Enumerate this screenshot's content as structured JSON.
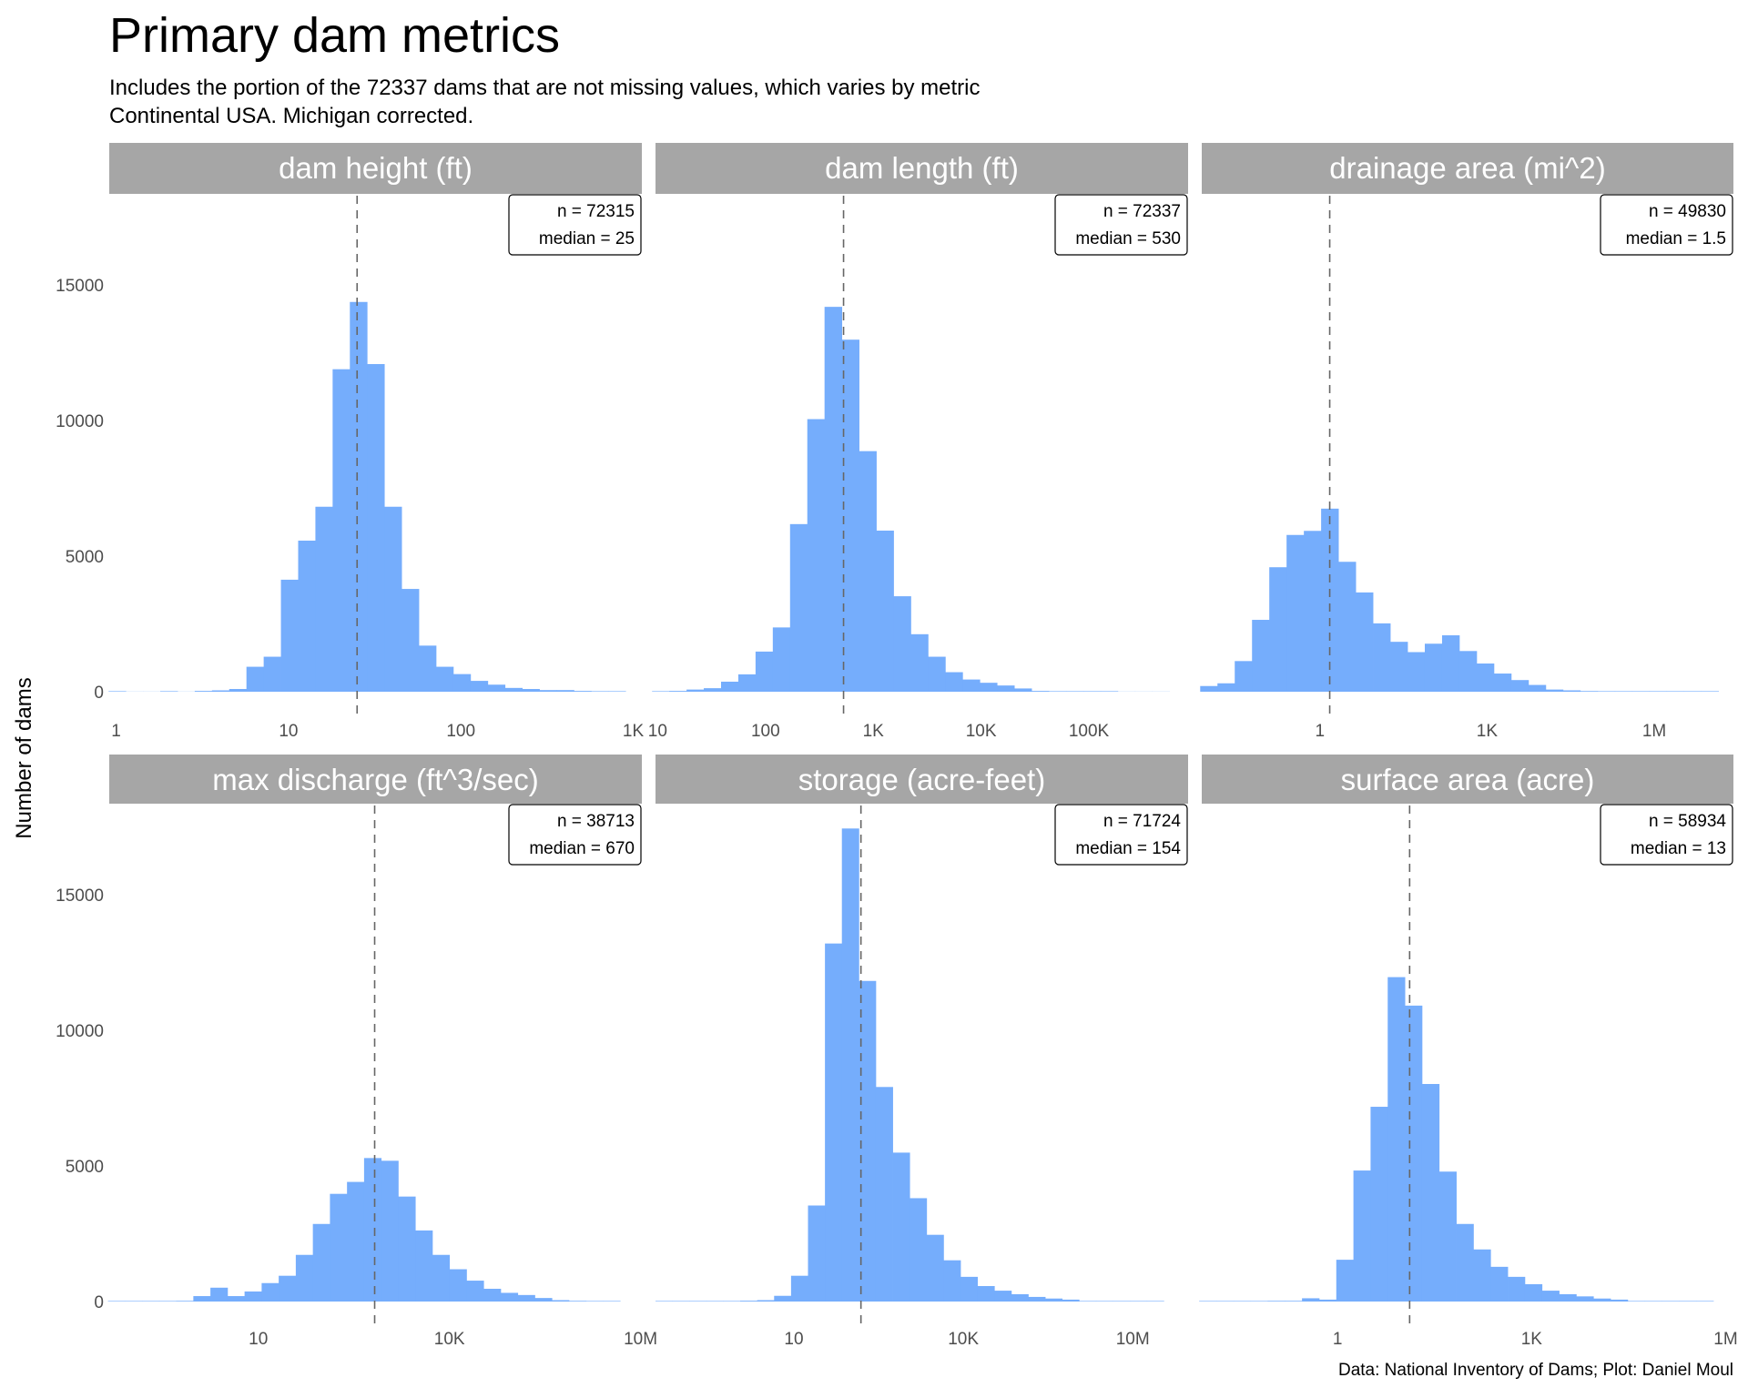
{
  "title": "Primary dam metrics",
  "subtitle": [
    "Includes the portion of the 72337 dams that are not missing values, which varies by metric",
    "Continental USA. Michigan corrected."
  ],
  "caption": "Data: National Inventory of Dams; Plot: Daniel Moul",
  "y_axis_label": "Number of dams",
  "colors": {
    "bar": "#75adfc",
    "strip": "#a6a6a6",
    "median_line": "#666666"
  },
  "chart_data": [
    {
      "type": "bar",
      "x_scale": "log10",
      "strip": "dam height (ft)",
      "n_label": "n = 72315",
      "median_label": "median = 25",
      "median": 25,
      "bin_start_log10": -0.044,
      "bin_width_log10": 0.1,
      "counts": [
        10,
        0,
        0,
        20,
        0,
        30,
        50,
        100,
        920,
        1290,
        4130,
        5570,
        6820,
        11890,
        14370,
        12080,
        6820,
        3790,
        1700,
        920,
        650,
        400,
        260,
        140,
        100,
        60,
        60,
        30,
        10,
        10
      ],
      "xlim_log10": [
        -0.04,
        3.05
      ],
      "ylim": [
        -800,
        18350
      ],
      "x_ticks": [
        {
          "v": 0,
          "label": "1"
        },
        {
          "v": 1,
          "label": "10"
        },
        {
          "v": 2,
          "label": "100"
        },
        {
          "v": 3,
          "label": "1K"
        }
      ],
      "y_ticks": [
        {
          "v": 0,
          "label": "0"
        },
        {
          "v": 5000,
          "label": "5000"
        },
        {
          "v": 10000,
          "label": "10000"
        },
        {
          "v": 15000,
          "label": "15000"
        }
      ]
    },
    {
      "type": "bar",
      "x_scale": "log10",
      "strip": "dam length (ft)",
      "n_label": "n = 72337",
      "median_label": "median = 530",
      "median": 530,
      "bin_start_log10": 0.948,
      "bin_width_log10": 0.16,
      "counts": [
        10,
        30,
        80,
        130,
        370,
        640,
        1480,
        2370,
        6180,
        10050,
        14190,
        12980,
        8870,
        5940,
        3520,
        2120,
        1290,
        720,
        450,
        330,
        230,
        120,
        30,
        10,
        5,
        5,
        2,
        0,
        0,
        0
      ],
      "xlim_log10": [
        0.98,
        5.92
      ],
      "ylim": [
        -800,
        18350
      ],
      "x_ticks": [
        {
          "v": 1,
          "label": "10"
        },
        {
          "v": 2,
          "label": "100"
        },
        {
          "v": 3,
          "label": "1K"
        },
        {
          "v": 4,
          "label": "10K"
        },
        {
          "v": 5,
          "label": "100K"
        }
      ]
    },
    {
      "type": "bar",
      "x_scale": "log10",
      "strip": "drainage area (mi^2)",
      "n_label": "n = 49830",
      "median_label": "median = 1.5",
      "median": 1.5,
      "bin_start_log10": -2.148,
      "bin_width_log10": 0.31,
      "counts": [
        210,
        310,
        1130,
        2650,
        4590,
        5780,
        5930,
        6750,
        4790,
        3660,
        2520,
        1840,
        1460,
        1770,
        2080,
        1500,
        1040,
        670,
        430,
        250,
        80,
        50,
        25,
        20,
        10,
        5,
        3,
        2,
        1,
        1
      ],
      "xlim_log10": [
        -2.12,
        7.42
      ],
      "ylim": [
        -800,
        18350
      ],
      "x_ticks": [
        {
          "v": 0,
          "label": "1"
        },
        {
          "v": 3,
          "label": "1K"
        },
        {
          "v": 6,
          "label": "1M"
        }
      ]
    },
    {
      "type": "bar",
      "x_scale": "log10",
      "strip": "max discharge (ft^3/sec)",
      "n_label": "n = 38713",
      "median_label": "median = 670",
      "median": 670,
      "bin_start_log10": -1.36,
      "bin_width_log10": 0.268,
      "counts": [
        2,
        5,
        5,
        10,
        25,
        200,
        510,
        200,
        370,
        680,
        950,
        1720,
        2860,
        3970,
        4410,
        5290,
        5190,
        3870,
        2620,
        1720,
        1190,
        770,
        470,
        320,
        240,
        130,
        50,
        25,
        5,
        2
      ],
      "xlim_log10": [
        -1.34,
        7.02
      ],
      "ylim": [
        -800,
        18350
      ],
      "x_ticks": [
        {
          "v": 1,
          "label": "10"
        },
        {
          "v": 4,
          "label": "10K"
        },
        {
          "v": 7,
          "label": "10M"
        }
      ],
      "y_ticks": [
        {
          "v": 0,
          "label": "0"
        },
        {
          "v": 5000,
          "label": "5000"
        },
        {
          "v": 10000,
          "label": "10000"
        },
        {
          "v": 15000,
          "label": "15000"
        }
      ]
    },
    {
      "type": "bar",
      "x_scale": "log10",
      "strip": "storage (acre-feet)",
      "n_label": "n = 71724",
      "median_label": "median = 154",
      "median": 154,
      "bin_start_log10": -1.45,
      "bin_width_log10": 0.3,
      "counts": [
        2,
        2,
        3,
        5,
        15,
        30,
        50,
        210,
        950,
        3540,
        13200,
        17440,
        11820,
        7910,
        5490,
        3810,
        2460,
        1520,
        910,
        570,
        400,
        270,
        170,
        110,
        70,
        15,
        10,
        5,
        3,
        2
      ],
      "xlim_log10": [
        -1.45,
        7.98
      ],
      "ylim": [
        -800,
        18350
      ],
      "x_ticks": [
        {
          "v": 1,
          "label": "10"
        },
        {
          "v": 4,
          "label": "10K"
        },
        {
          "v": 7,
          "label": "10M"
        }
      ]
    },
    {
      "type": "bar",
      "x_scale": "log10",
      "strip": "surface area (acre)",
      "n_label": "n = 58934",
      "median_label": "median = 13",
      "median": 13,
      "bin_start_log10": -2.14,
      "bin_width_log10": 0.265,
      "counts": [
        1,
        1,
        2,
        3,
        25,
        25,
        120,
        70,
        1540,
        4830,
        7180,
        11960,
        10910,
        8020,
        4790,
        2860,
        1920,
        1280,
        910,
        640,
        400,
        270,
        190,
        110,
        70,
        15,
        10,
        5,
        3,
        1
      ],
      "xlim_log10": [
        -2.1,
        6.12
      ],
      "ylim": [
        -800,
        18350
      ],
      "x_ticks": [
        {
          "v": 0,
          "label": "1"
        },
        {
          "v": 3,
          "label": "1K"
        },
        {
          "v": 6,
          "label": "1M"
        }
      ]
    }
  ]
}
